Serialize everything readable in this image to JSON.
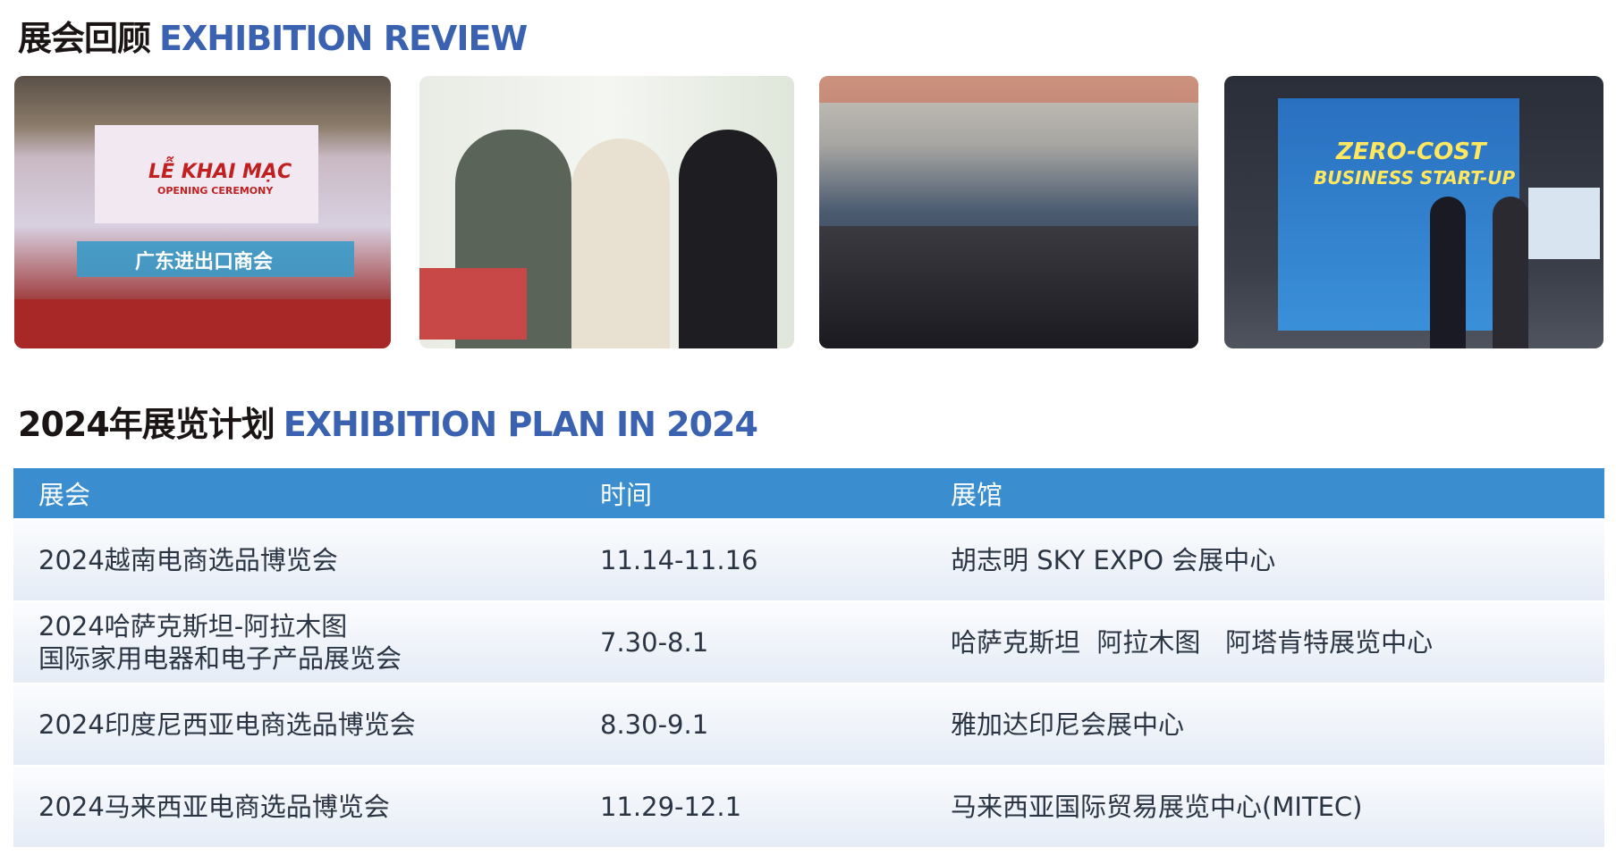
{
  "review": {
    "title_cn": "展会回顾",
    "title_en": "EXHIBITION REVIEW"
  },
  "photos": [
    {
      "subject": "opening-ceremony",
      "banner_text": "LỄ KHAI MẠC",
      "banner_sub": "OPENING CEREMONY",
      "flag_text": "广东进出口商会"
    },
    {
      "subject": "visitors-at-booth"
    },
    {
      "subject": "exhibition-hall-crowd"
    },
    {
      "subject": "booth-display",
      "banner_text": "ZERO-COST",
      "banner_sub": "BUSINESS START-UP"
    }
  ],
  "plan": {
    "title_cn": "2024年展览计划",
    "title_en": "EXHIBITION PLAN IN 2024",
    "headers": [
      "展会",
      "时间",
      "展馆"
    ],
    "rows": [
      {
        "name_line1": "2024越南电商选品博览会",
        "name_line2": "",
        "date": "11.14-11.16",
        "venue": "胡志明 SKY EXPO 会展中心"
      },
      {
        "name_line1": "2024哈萨克斯坦-阿拉木图",
        "name_line2": "国际家用电器和电子产品展览会",
        "date": "7.30-8.1",
        "venue": "哈萨克斯坦  阿拉木图   阿塔肯特展览中心"
      },
      {
        "name_line1": "2024印度尼西亚电商选品博览会",
        "name_line2": "",
        "date": "8.30-9.1",
        "venue": "雅加达印尼会展中心"
      },
      {
        "name_line1": "2024马来西亚电商选品博览会",
        "name_line2": "",
        "date": "11.29-12.1",
        "venue": "马来西亚国际贸易展览中心(MITEC)"
      }
    ]
  },
  "colors": {
    "header_bg": "#3a8ecf",
    "title_accent": "#3a62b0"
  }
}
